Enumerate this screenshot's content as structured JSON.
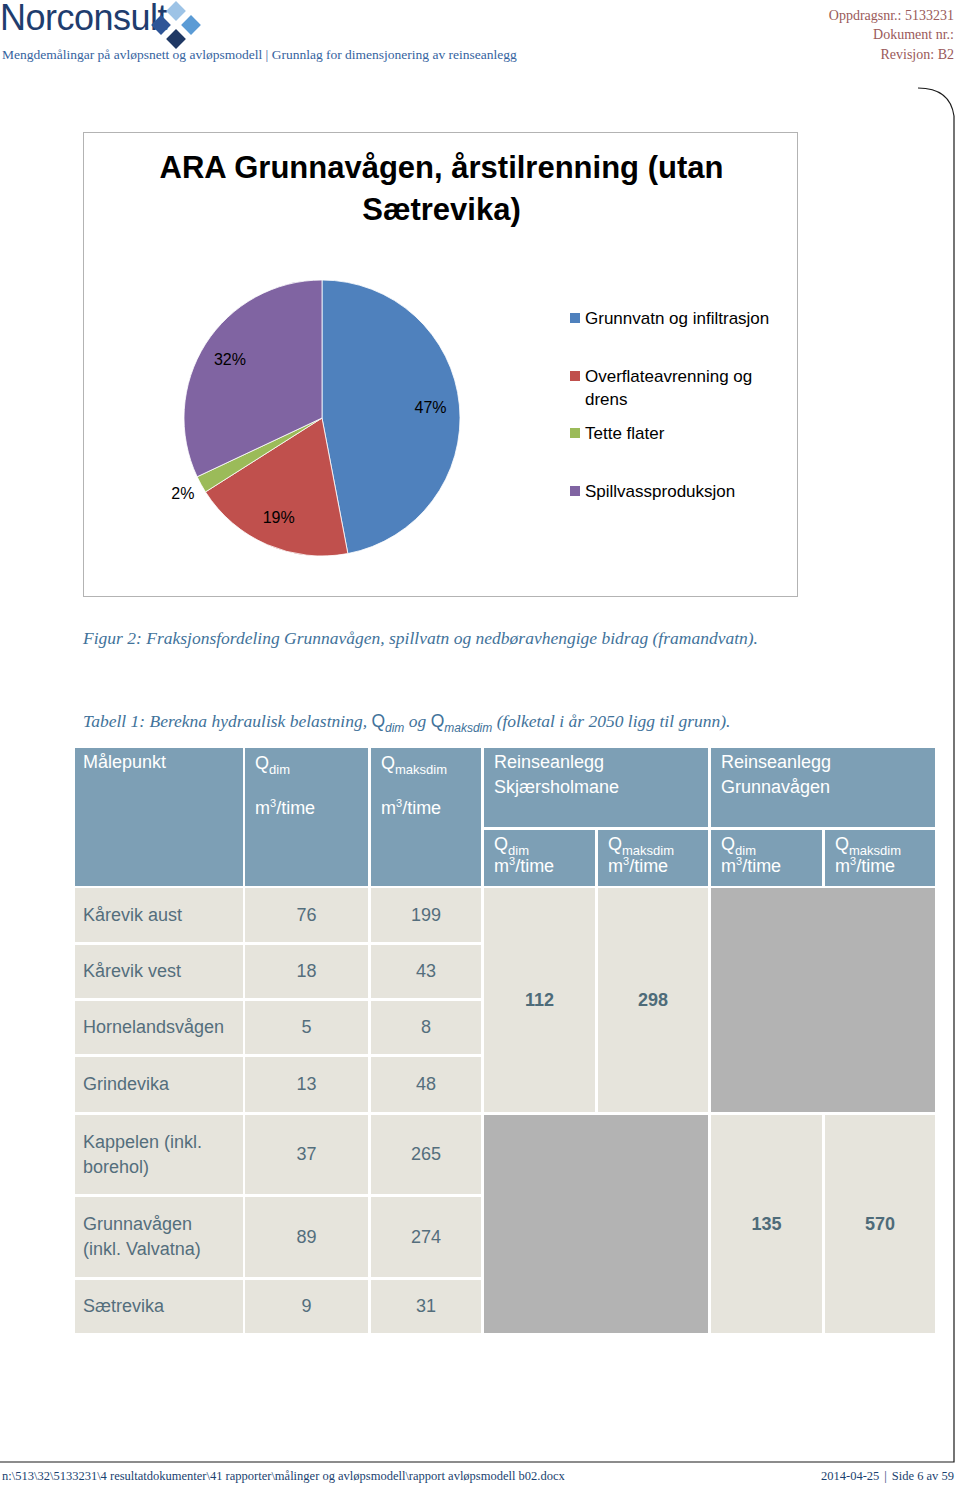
{
  "header": {
    "logo": "Norconsult",
    "subtitle": "Mengdemålingar på avløpsnett og avløpsmodell | Grunnlag for dimensjonering av reinseanlegg",
    "assignment": "Oppdragsnr.: 5133231",
    "document": "Dokument nr.:",
    "revision": "Revisjon: B2"
  },
  "chart_data": {
    "type": "pie",
    "title": "ARA Grunnavågen, årstilrenning (utan Sætrevika)",
    "categories": [
      "Grunnvatn og infiltrasjon",
      "Overflateavrenning og drens",
      "Tette flater",
      "Spillvassproduksjon"
    ],
    "values": [
      47,
      19,
      2,
      32
    ],
    "value_labels": [
      "47%",
      "19%",
      "2%",
      "32%"
    ],
    "colors": [
      "#4f81bd",
      "#c0504d",
      "#9bbb59",
      "#8064a2"
    ],
    "legend": "right",
    "data_labels": true
  },
  "figure_caption": "Figur 2: Fraksjonsfordeling Grunnavågen, spillvatn og nedbøravhengige bidrag (framandvatn).",
  "table": {
    "caption": {
      "before": "Tabell 1: Berekna hydraulisk belastning, ",
      "symbol_1": "Q",
      "sub_1": "dim",
      "middle": " og ",
      "symbol_2": "Q",
      "sub_2": "maksdim",
      "after": " (folketal i år 2050 ligg til grunn)."
    },
    "header": {
      "location": "Målepunkt",
      "qdim": {
        "symbol": "Q",
        "sub": "dim",
        "unit": "m",
        "unit_sup": "3",
        "unit_tail": "/time"
      },
      "qmaksdim": {
        "symbol": "Q",
        "sub": "maksdim",
        "unit": "m",
        "unit_sup": "3",
        "unit_tail": "/time"
      }
    },
    "plants": [
      {
        "name": [
          "Reinseanlegg",
          "Skjærsholmane"
        ],
        "qdim": {
          "symbol": "Q",
          "sub": "dim",
          "unit": "m",
          "unit_sup": "3",
          "unit_tail": "/time"
        },
        "qmaksdim": {
          "symbol": "Q",
          "sub": "maksdim",
          "unit": "m",
          "unit_sup": "3",
          "unit_tail": "/time"
        },
        "values": [
          112,
          298
        ]
      },
      {
        "name": [
          "Reinseanlegg",
          "Grunnavågen"
        ],
        "qdim": {
          "symbol": "Q",
          "sub": "dim",
          "unit": "m",
          "unit_sup": "3",
          "unit_tail": "/time"
        },
        "qmaksdim": {
          "symbol": "Q",
          "sub": "maksdim",
          "unit": "m",
          "unit_sup": "3",
          "unit_tail": "/time"
        },
        "values": [
          135,
          570
        ]
      }
    ],
    "rows": [
      {
        "location": "Kårevik aust",
        "qdim": 76,
        "qmaksdim": 199
      },
      {
        "location": "Kårevik vest",
        "qdim": 18,
        "qmaksdim": 43
      },
      {
        "location": "Hornelandsvågen",
        "qdim": 5,
        "qmaksdim": 8
      },
      {
        "location": "Grindevika",
        "qdim": 13,
        "qmaksdim": 48
      },
      {
        "location": "Kappelen (inkl. borehol)",
        "qdim": 37,
        "qmaksdim": 265
      },
      {
        "location": "Grunnavågen (inkl. Valvatna)",
        "qdim": 89,
        "qmaksdim": 274
      },
      {
        "location": "Sætrevika",
        "qdim": 9,
        "qmaksdim": 31
      }
    ]
  },
  "footer": {
    "path": "n:\\513\\32\\5133231\\4 resultatdokumenter\\41 rapporter\\målinger og avløpsmodell\\rapport avløpsmodell b02.docx",
    "date": "2014-04-25",
    "separator": "|",
    "page": "Side 6 av 59"
  }
}
